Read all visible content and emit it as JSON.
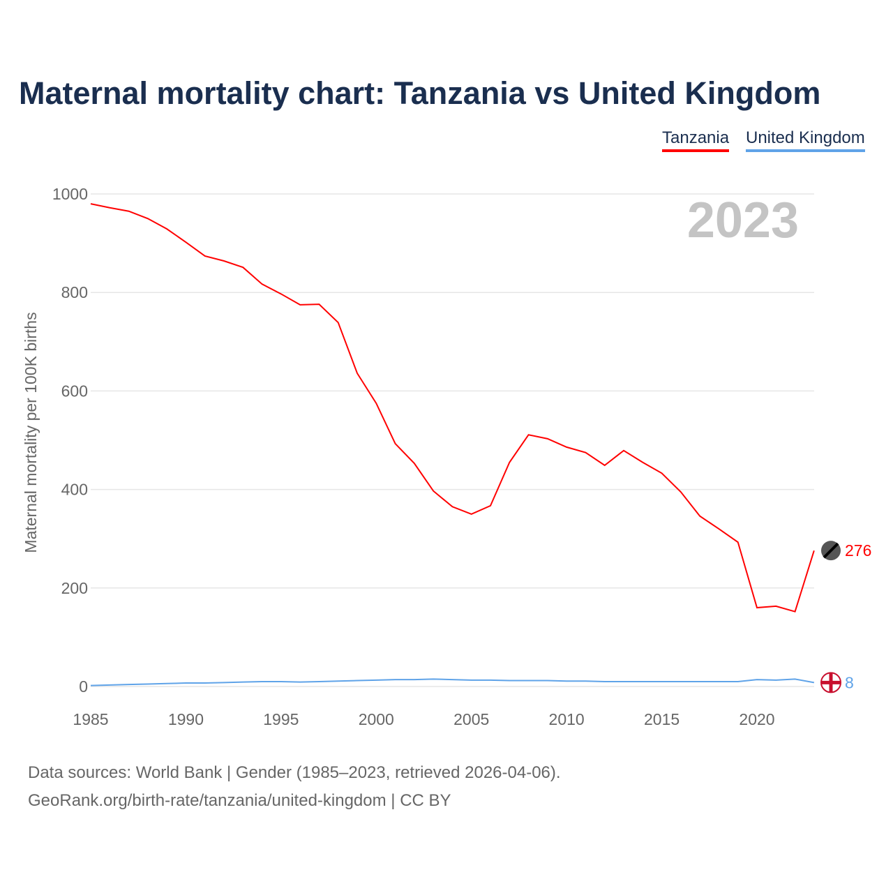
{
  "chart_data": {
    "type": "line",
    "title": "Maternal mortality chart: Tanzania vs United Kingdom",
    "ylabel": "Maternal mortality per 100K births",
    "xlabel": "",
    "ylim": [
      0,
      1000
    ],
    "xlim": [
      1985,
      2023
    ],
    "yticks": [
      "0",
      "200",
      "400",
      "600",
      "800",
      "1000"
    ],
    "xticks": [
      "1985",
      "1990",
      "1995",
      "2000",
      "2005",
      "2010",
      "2015",
      "2020"
    ],
    "year_label": "2023",
    "x": [
      1985,
      1986,
      1987,
      1988,
      1989,
      1990,
      1991,
      1992,
      1993,
      1994,
      1995,
      1996,
      1997,
      1998,
      1999,
      2000,
      2001,
      2002,
      2003,
      2004,
      2005,
      2006,
      2007,
      2008,
      2009,
      2010,
      2011,
      2012,
      2013,
      2014,
      2015,
      2016,
      2017,
      2018,
      2019,
      2020,
      2021,
      2022,
      2023
    ],
    "series": [
      {
        "name": "Tanzania",
        "color": "#ff0000",
        "end_label": "276",
        "values": [
          980,
          972,
          965,
          950,
          929,
          902,
          874,
          864,
          851,
          817,
          797,
          775,
          776,
          739,
          636,
          575,
          493,
          453,
          397,
          365,
          350,
          367,
          455,
          511,
          503,
          486,
          475,
          449,
          479,
          455,
          433,
          395,
          346,
          320,
          293,
          160,
          163,
          152,
          276
        ]
      },
      {
        "name": "United Kingdom",
        "color": "#5fa3e8",
        "end_label": "8",
        "values": [
          2,
          3,
          4,
          5,
          6,
          7,
          7,
          8,
          9,
          10,
          10,
          9,
          10,
          11,
          12,
          13,
          14,
          14,
          15,
          14,
          13,
          13,
          12,
          12,
          12,
          11,
          11,
          10,
          10,
          10,
          10,
          10,
          10,
          10,
          10,
          14,
          13,
          15,
          8
        ]
      }
    ]
  },
  "source_lines": [
    "Data sources: World Bank | Gender (1985–2023, retrieved 2026-04-06).",
    "GeoRank.org/birth-rate/tanzania/united-kingdom | CC BY"
  ]
}
